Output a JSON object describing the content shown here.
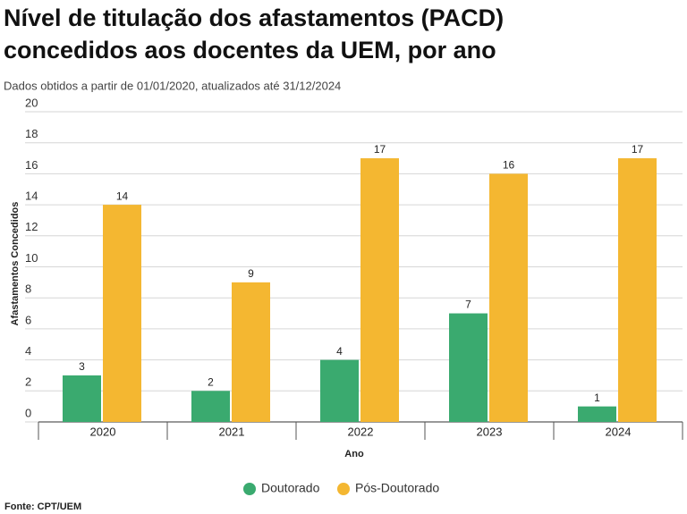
{
  "chart_data": {
    "type": "bar",
    "title": "Nível de titulação dos afastamentos (PACD)",
    "title_line2": "concedidos aos docentes da UEM, por ano",
    "subtitle": "Dados obtidos a partir de 01/01/2020, atualizados até 31/12/2024",
    "x_label": "Ano",
    "y_label": "Afastamentos Concedidos",
    "categories": [
      "2020",
      "2021",
      "2022",
      "2023",
      "2024"
    ],
    "series": [
      {
        "name": "Doutorado",
        "color": "#3aaa6f",
        "values": [
          3,
          2,
          4,
          7,
          1
        ]
      },
      {
        "name": "Pós-Doutorado",
        "color": "#f4b731",
        "values": [
          14,
          9,
          17,
          16,
          17
        ]
      }
    ],
    "ylim": [
      0,
      20
    ],
    "yticks": [
      0,
      2,
      4,
      6,
      8,
      10,
      12,
      14,
      16,
      18,
      20
    ],
    "grid": true,
    "source": "Fonte: CPT/UEM"
  }
}
